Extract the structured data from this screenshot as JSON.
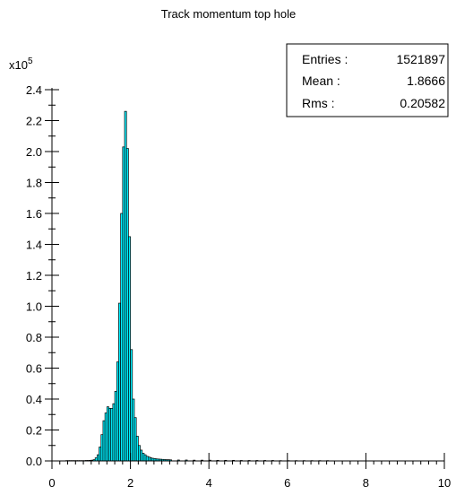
{
  "chart_data": {
    "type": "bar",
    "title": "Track momentum top  hole",
    "xlabel": "",
    "ylabel": "",
    "y_multiplier_label": "x10",
    "y_multiplier_exponent": "5",
    "xlim": [
      0,
      10
    ],
    "ylim": [
      0,
      2.4
    ],
    "x_ticks": [
      "0",
      "2",
      "4",
      "6",
      "8",
      "10"
    ],
    "y_ticks": [
      "0.0",
      "0.2",
      "0.4",
      "0.6",
      "0.8",
      "1.0",
      "1.2",
      "1.4",
      "1.6",
      "1.8",
      "2.0",
      "2.2",
      "2.4"
    ],
    "bar_color": "#00f0ff",
    "bar_edge_color": "#000000",
    "stats": {
      "entries_label": "Entries :",
      "entries_value": "1521897",
      "mean_label": "Mean :",
      "mean_value": "1.8666",
      "rms_label": "Rms :",
      "rms_value": "0.20582"
    },
    "series": [
      {
        "bin_width": 0.05,
        "x": [
          0.35,
          0.4,
          0.45,
          0.5,
          0.55,
          0.6,
          0.65,
          0.7,
          0.75,
          0.8,
          0.85,
          0.9,
          0.95,
          1.0,
          1.05,
          1.1,
          1.15,
          1.2,
          1.25,
          1.3,
          1.35,
          1.4,
          1.45,
          1.5,
          1.55,
          1.6,
          1.65,
          1.7,
          1.75,
          1.8,
          1.85,
          1.9,
          1.95,
          2.0,
          2.05,
          2.1,
          2.15,
          2.2,
          2.25,
          2.3,
          2.35,
          2.4,
          2.45,
          2.5,
          2.55,
          2.6,
          2.65,
          2.7,
          2.75,
          2.8,
          2.85,
          2.9,
          2.95,
          3.0,
          3.2,
          3.4,
          3.6,
          3.8,
          4.0,
          4.2,
          4.4,
          4.6,
          4.8,
          5.0,
          5.2,
          5.4,
          5.6,
          5.8,
          6.0,
          6.2,
          6.4,
          6.6,
          6.8,
          7.0
        ],
        "values": [
          0.002,
          0.002,
          0.002,
          0.002,
          0.002,
          0.002,
          0.002,
          0.002,
          0.002,
          0.002,
          0.003,
          0.003,
          0.004,
          0.005,
          0.008,
          0.02,
          0.04,
          0.09,
          0.17,
          0.26,
          0.31,
          0.35,
          0.34,
          0.34,
          0.37,
          0.45,
          0.64,
          1.02,
          1.6,
          2.03,
          2.26,
          2.02,
          1.45,
          0.72,
          0.4,
          0.28,
          0.16,
          0.1,
          0.07,
          0.05,
          0.04,
          0.03,
          0.025,
          0.02,
          0.017,
          0.015,
          0.013,
          0.012,
          0.011,
          0.01,
          0.009,
          0.008,
          0.008,
          0.007,
          0.006,
          0.006,
          0.005,
          0.005,
          0.005,
          0.004,
          0.004,
          0.004,
          0.003,
          0.003,
          0.003,
          0.003,
          0.003,
          0.002,
          0.002,
          0.002,
          0.002,
          0.002,
          0.002,
          0.002
        ]
      }
    ]
  }
}
